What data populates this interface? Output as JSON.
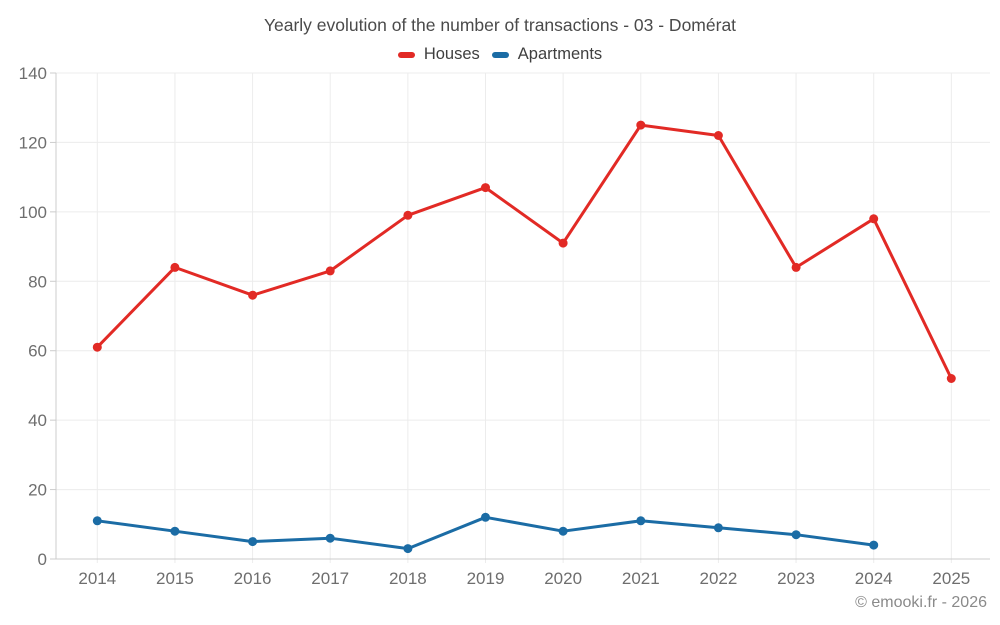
{
  "title": "Yearly evolution of the number of transactions - 03 - Domérat",
  "footer": "© emooki.fr - 2026",
  "style_colors": {
    "background": "#ffffff",
    "grid": "#ececec",
    "axis": "#cccccc",
    "tick_label": "#6e6e6e",
    "title_text": "#4a4a4a",
    "legend_text": "#3f3f3f",
    "footer_text": "#8a8a8a"
  },
  "chart_data": {
    "type": "line",
    "title": "Yearly evolution of the number of transactions - 03 - Domérat",
    "x": [
      2014,
      2015,
      2016,
      2017,
      2018,
      2019,
      2020,
      2021,
      2022,
      2023,
      2024,
      2025
    ],
    "series": [
      {
        "name": "Houses",
        "color": "#e22a25",
        "values": [
          61,
          84,
          76,
          83,
          99,
          107,
          91,
          125,
          122,
          84,
          98,
          52
        ]
      },
      {
        "name": "Apartments",
        "color": "#1b6ca5",
        "values": [
          11,
          8,
          5,
          6,
          3,
          12,
          8,
          11,
          9,
          7,
          4,
          null
        ]
      }
    ],
    "xlabel": "",
    "ylabel": "",
    "ylim": [
      0,
      140
    ],
    "yticks": [
      0,
      20,
      40,
      60,
      80,
      100,
      120,
      140
    ],
    "grid": true,
    "legend_position": "top-center",
    "marker": "circle"
  }
}
